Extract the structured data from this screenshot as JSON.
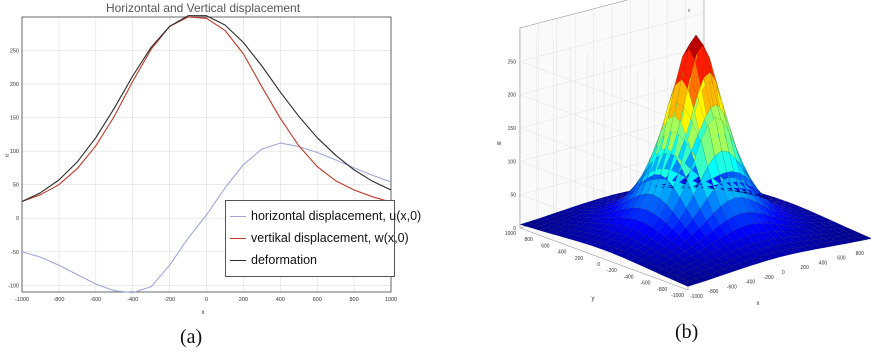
{
  "chart_data": [
    {
      "type": "line",
      "title": "Horizontal and Vertical displacement",
      "xlabel": "x",
      "ylabel": "u",
      "xlim": [
        -1000,
        1000
      ],
      "ylim": [
        -110,
        300
      ],
      "xticks": [
        "-1000",
        "-800",
        "-600",
        "-400",
        "-200",
        "0",
        "200",
        "400",
        "600",
        "800",
        "1000"
      ],
      "yticks": [
        "-100",
        "-50",
        "0",
        "50",
        "100",
        "150",
        "200",
        "250"
      ],
      "grid": true,
      "legend_position": "bottom-right",
      "caption": "(a)",
      "x": [
        -1000,
        -900,
        -800,
        -700,
        -600,
        -500,
        -400,
        -300,
        -200,
        -100,
        0,
        100,
        200,
        300,
        400,
        500,
        600,
        700,
        800,
        900,
        1000
      ],
      "series": [
        {
          "name": "horizontal displacement, u(x,0)",
          "color": "#9fa8d8",
          "values": [
            -50,
            -58,
            -70,
            -84,
            -98,
            -108,
            -111,
            -102,
            -70,
            -30,
            5,
            45,
            80,
            103,
            112,
            107,
            98,
            87,
            75,
            64,
            54
          ]
        },
        {
          "name": "vertikal displacement, w(x,0)",
          "color": "#c0392b",
          "values": [
            25,
            35,
            50,
            74,
            108,
            152,
            204,
            252,
            286,
            300,
            298,
            280,
            245,
            196,
            149,
            108,
            77,
            56,
            42,
            32,
            24
          ]
        },
        {
          "name": "deformation",
          "color": "#2c2c2c",
          "values": [
            25,
            38,
            57,
            84,
            120,
            164,
            212,
            255,
            286,
            302,
            302,
            288,
            262,
            227,
            188,
            152,
            120,
            94,
            72,
            55,
            42
          ]
        }
      ]
    },
    {
      "type": "surface",
      "title": "x",
      "xlabel": "x",
      "ylabel": "y",
      "zlabel": "w",
      "xlim": [
        -1000,
        1000
      ],
      "ylim": [
        -1000,
        1000
      ],
      "zlim": [
        0,
        300
      ],
      "xticks": [
        "-1000",
        "-800",
        "-600",
        "-400",
        "-200",
        "0",
        "200",
        "400",
        "600",
        "800"
      ],
      "yticks": [
        "1000",
        "800",
        "600",
        "400",
        "200",
        "0",
        "-200",
        "-400",
        "-600",
        "-800",
        "-1000"
      ],
      "zticks": [
        "0",
        "50",
        "100",
        "150",
        "200",
        "250"
      ],
      "peak_value": 300,
      "colormap": "jet",
      "grid": true,
      "caption": "(b)"
    }
  ]
}
